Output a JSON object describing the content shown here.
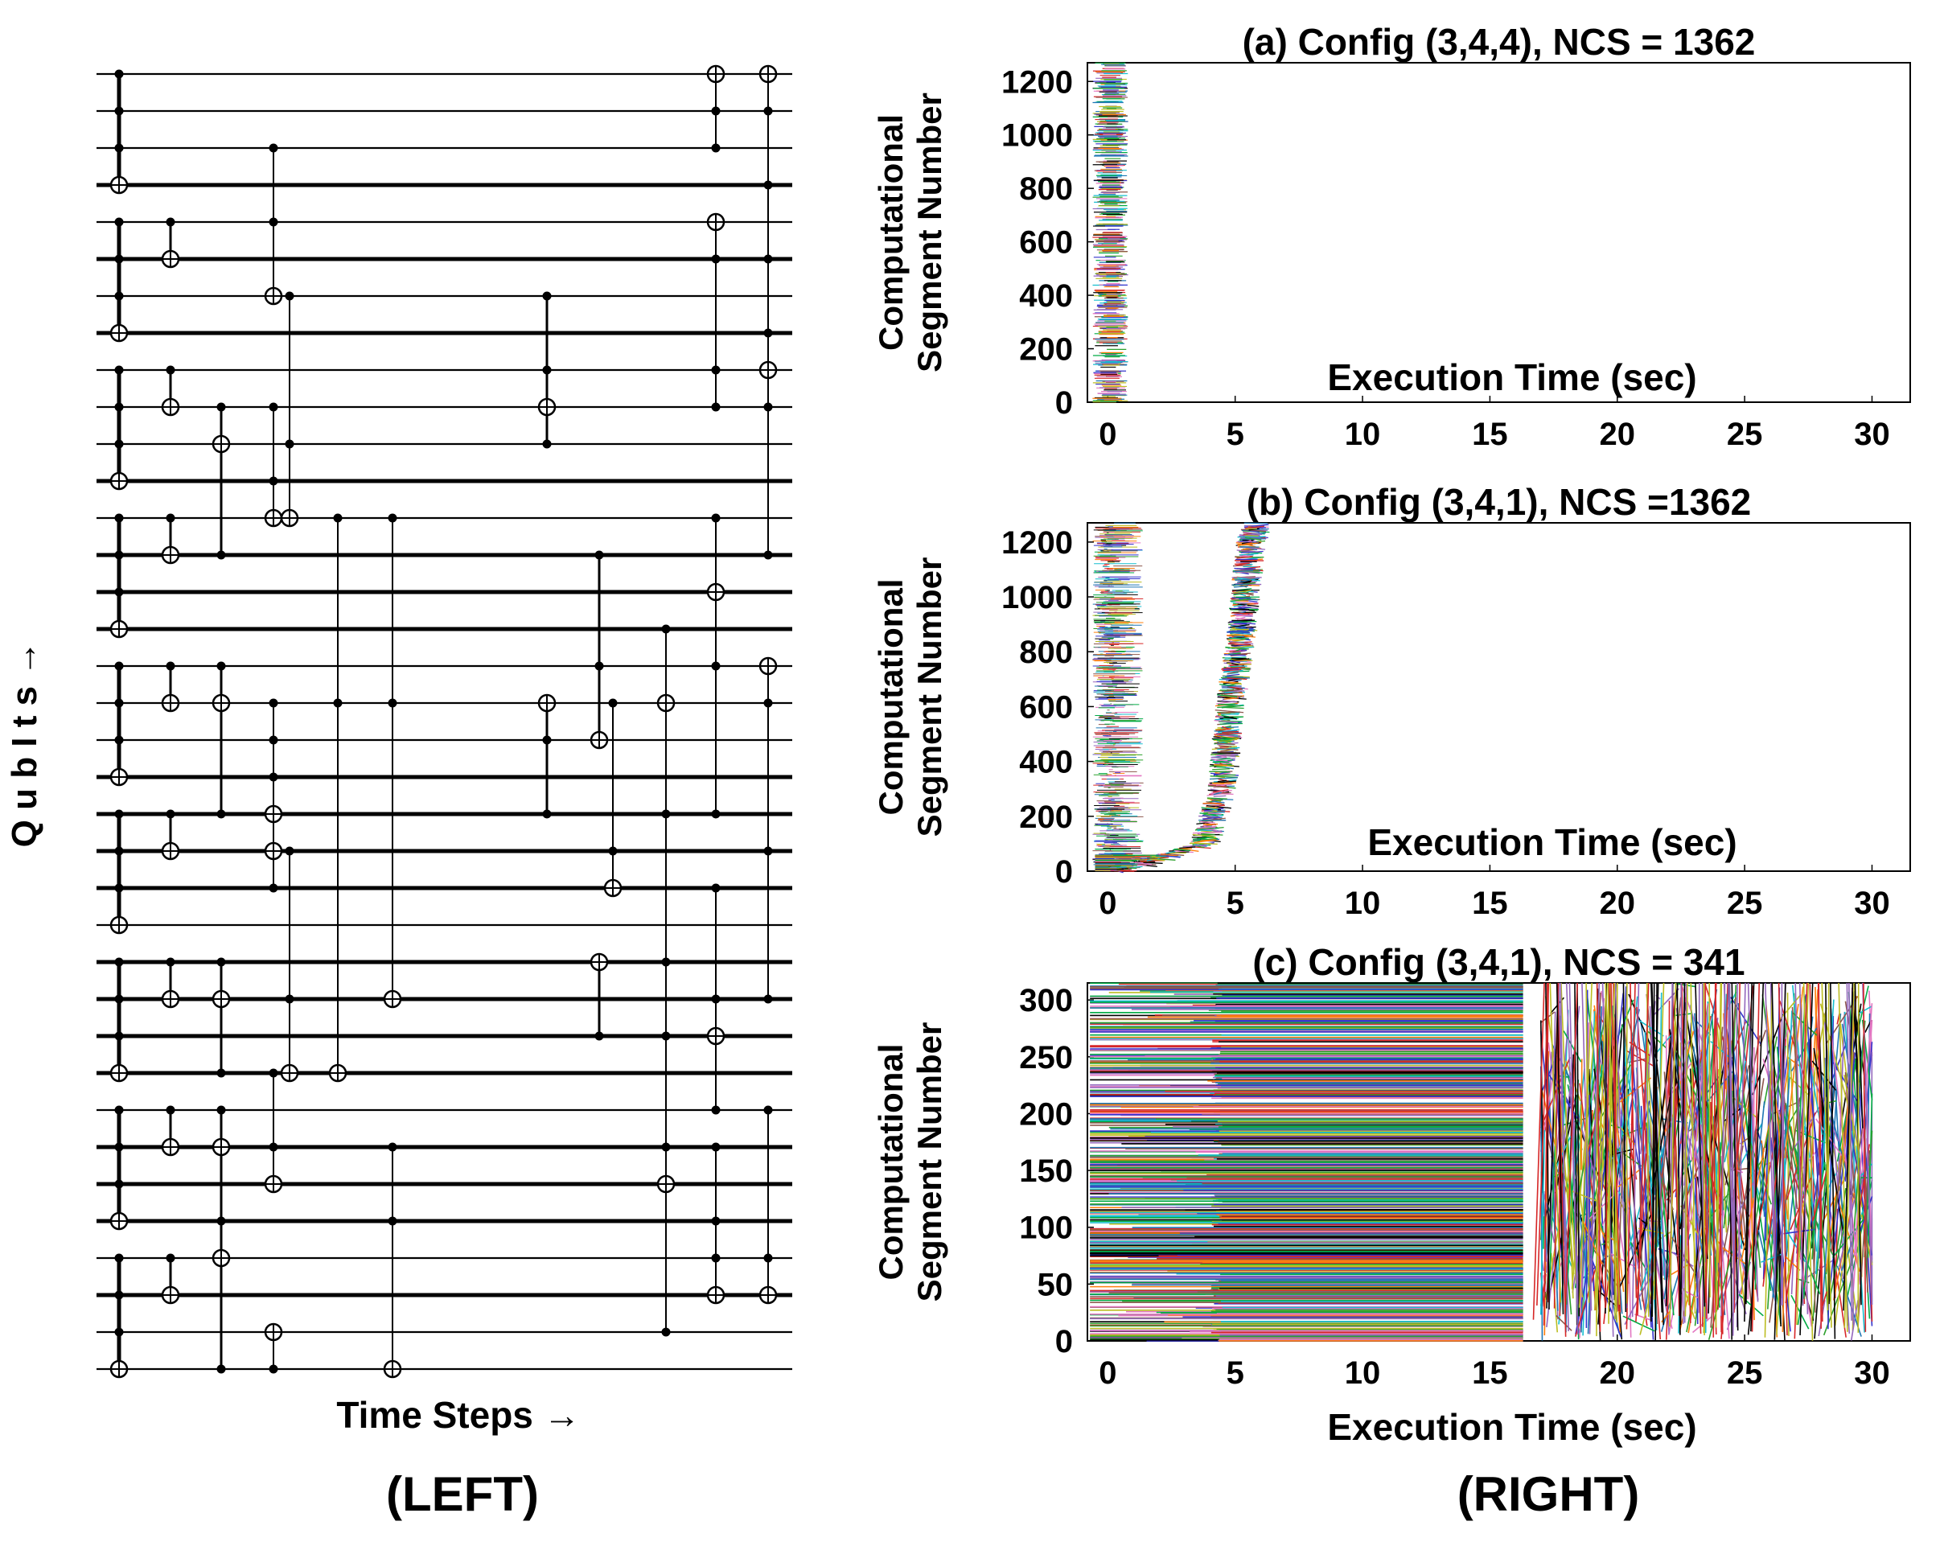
{
  "left_panel": {
    "ylabel": "Q u b I t s  →",
    "xlabel": "Time Steps →",
    "caption": "(LEFT)"
  },
  "right_panel": {
    "caption": "(RIGHT)"
  },
  "chart_data": [
    {
      "id": "a",
      "type": "line",
      "title": "(a) Config (3,4,4), NCS = 1362",
      "ylabel_line1": "Computational",
      "ylabel_line2": "Segment Number",
      "xlabel": "Execution Time (sec)",
      "xlim": [
        -0.8,
        31.5
      ],
      "ylim": [
        0,
        1270
      ],
      "xticks": [
        0,
        5,
        10,
        15,
        20,
        25,
        30
      ],
      "yticks": [
        0,
        200,
        400,
        600,
        800,
        1000,
        1200
      ],
      "segments": 1362,
      "start_time_range": [
        -0.6,
        0.0
      ],
      "end_time_range": [
        0.3,
        0.8
      ]
    },
    {
      "id": "b",
      "type": "line",
      "title": "(b) Config (3,4,1), NCS =1362",
      "ylabel_line1": "Computational",
      "ylabel_line2": "Segment Number",
      "xlabel": "Execution Time (sec)",
      "xlim": [
        -0.8,
        31.5
      ],
      "ylim": [
        0,
        1270
      ],
      "xticks": [
        0,
        5,
        10,
        15,
        20,
        25,
        30
      ],
      "yticks": [
        0,
        200,
        400,
        600,
        800,
        1000,
        1200
      ],
      "segments": 1362,
      "wave_front_time": [
        [
          0,
          0.5
        ],
        [
          100,
          3.8
        ],
        [
          300,
          4.5
        ],
        [
          600,
          4.8
        ],
        [
          900,
          5.3
        ],
        [
          1200,
          5.6
        ],
        [
          1270,
          5.9
        ]
      ]
    },
    {
      "id": "c",
      "type": "line",
      "title": "(c) Config (3,4,1), NCS = 341",
      "ylabel_line1": "Computational",
      "ylabel_line2": "Segment Number",
      "xlabel": "Execution Time (sec)",
      "xlim": [
        -0.8,
        31.5
      ],
      "ylim": [
        0,
        315
      ],
      "xticks": [
        0,
        5,
        10,
        15,
        20,
        25,
        30
      ],
      "yticks": [
        0,
        50,
        100,
        150,
        200,
        250,
        300
      ],
      "segments": 341,
      "dense_block_end_time": 16.3,
      "scatter_time_range": [
        17,
        30
      ]
    }
  ]
}
